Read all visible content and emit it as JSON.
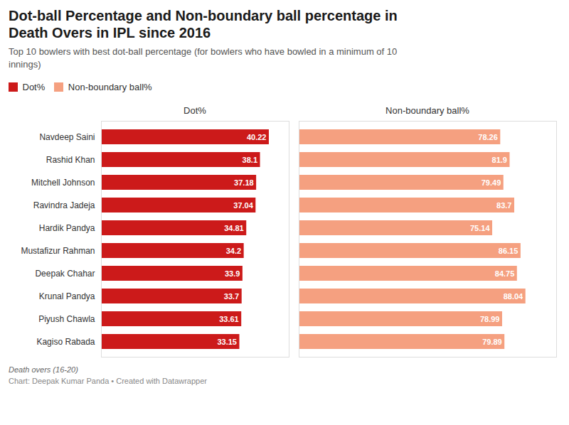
{
  "chart_data": [
    {
      "type": "bar",
      "orientation": "horizontal",
      "title": "Dot-ball Percentage and Non-boundary ball percentage in\nDeath Overs in IPL since 2016",
      "subtitle": "Top 10 bowlers with best dot-ball percentage (for bowlers who have bowled in a minimum of 10\ninnings)",
      "annotations": [
        "Death overs (16-20)",
        "Chart: Deepak Kumar Panda • Created with Datawrapper"
      ],
      "xlabel": "Dot%",
      "categories": [
        "Navdeep Saini",
        "Rashid Khan",
        "Mitchell Johnson",
        "Ravindra Jadeja",
        "Hardik Pandya",
        "Mustafizur Rahman",
        "Deepak Chahar",
        "Krunal Pandya",
        "Piyush Chawla",
        "Kagiso Rabada"
      ],
      "series": [
        {
          "name": "Dot%",
          "color": "#cc1a1a",
          "values": [
            40.22,
            38.1,
            37.18,
            37.04,
            34.81,
            34.2,
            33.9,
            33.7,
            33.61,
            33.15
          ]
        }
      ],
      "xlim": [
        0,
        45
      ],
      "data_labels": true,
      "tick_labels": "y",
      "legend": "top left"
    },
    {
      "type": "bar",
      "orientation": "horizontal",
      "xlabel": "Non-boundary ball%",
      "categories": [
        "Navdeep Saini",
        "Rashid Khan",
        "Mitchell Johnson",
        "Ravindra Jadeja",
        "Hardik Pandya",
        "Mustafizur Rahman",
        "Deepak Chahar",
        "Krunal Pandya",
        "Piyush Chawla",
        "Kagiso Rabada"
      ],
      "series": [
        {
          "name": "Non-boundary ball%",
          "color": "#f5a080",
          "values": [
            78.26,
            81.9,
            79.49,
            83.7,
            75.14,
            86.15,
            84.75,
            88.04,
            78.99,
            79.89
          ]
        }
      ],
      "xlim": [
        0,
        100
      ],
      "data_labels": true,
      "tick_labels": false
    }
  ]
}
